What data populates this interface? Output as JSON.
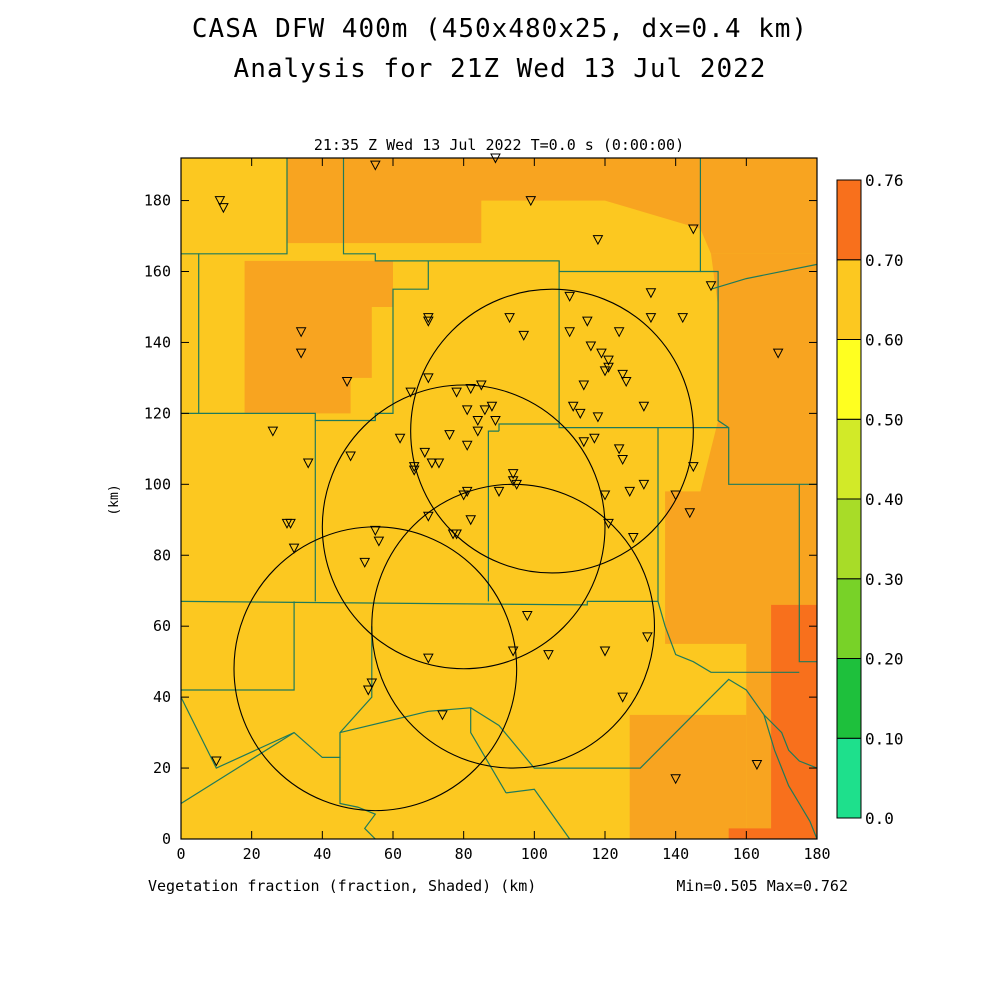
{
  "title": "CASA DFW 400m (450x480x25, dx=0.4 km)",
  "subtitle": "Analysis for 21Z Wed 13 Jul 2022",
  "time_label": "21:35 Z Wed 13 Jul 2022   T=0.0 s (0:00:00)",
  "footer_left": "Vegetation fraction (fraction, Shaded)  (km)",
  "footer_right": "Min=0.505 Max=0.762",
  "colors": {
    "c050_060": "#fcc820",
    "c060_070": "#f8a420",
    "c070_076": "#f8701c",
    "boundary": "#1f7a5a",
    "radar_ring": "#000000"
  },
  "chart_data": {
    "type": "heatmap",
    "xlabel": "",
    "ylabel": "(km)",
    "xlim": [
      0,
      180
    ],
    "ylim": [
      0,
      192
    ],
    "x_ticks": [
      0,
      20,
      40,
      60,
      80,
      100,
      120,
      140,
      160,
      180
    ],
    "y_ticks": [
      0,
      20,
      40,
      60,
      80,
      100,
      120,
      140,
      160,
      180
    ],
    "colorbar": {
      "levels": [
        "0.0",
        "0.10",
        "0.20",
        "0.30",
        "0.40",
        "0.50",
        "0.60",
        "0.70",
        "0.76"
      ],
      "colors": [
        "#1ee08c",
        "#1ec03c",
        "#78d228",
        "#a8dc28",
        "#d2ea28",
        "#ffff20",
        "#fcc820",
        "#f8a420"
      ],
      "top_color": "#f8701c"
    },
    "radar_rings": [
      {
        "center_x": 105,
        "center_y": 115,
        "radius_km": 40
      },
      {
        "center_x": 80,
        "center_y": 88,
        "radius_km": 40
      },
      {
        "center_x": 94,
        "center_y": 60,
        "radius_km": 40
      },
      {
        "center_x": 55,
        "center_y": 48,
        "radius_km": 40
      }
    ],
    "stations": [
      [
        11,
        180
      ],
      [
        12,
        178
      ],
      [
        55,
        190
      ],
      [
        89,
        192
      ],
      [
        99,
        180
      ],
      [
        118,
        169
      ],
      [
        145,
        172
      ],
      [
        150,
        156
      ],
      [
        34,
        143
      ],
      [
        34,
        137
      ],
      [
        70,
        147
      ],
      [
        70,
        146
      ],
      [
        93,
        147
      ],
      [
        97,
        142
      ],
      [
        110,
        143
      ],
      [
        110,
        153
      ],
      [
        115,
        146
      ],
      [
        124,
        143
      ],
      [
        133,
        154
      ],
      [
        133,
        147
      ],
      [
        142,
        147
      ],
      [
        169,
        137
      ],
      [
        47,
        129
      ],
      [
        65,
        126
      ],
      [
        70,
        130
      ],
      [
        78,
        126
      ],
      [
        82,
        127
      ],
      [
        85,
        128
      ],
      [
        81,
        121
      ],
      [
        88,
        122
      ],
      [
        89,
        118
      ],
      [
        84,
        118
      ],
      [
        84,
        115
      ],
      [
        86,
        121
      ],
      [
        114,
        128
      ],
      [
        116,
        139
      ],
      [
        119,
        137
      ],
      [
        121,
        135
      ],
      [
        121,
        133
      ],
      [
        120,
        132
      ],
      [
        125,
        131
      ],
      [
        126,
        129
      ],
      [
        131,
        122
      ],
      [
        111,
        122
      ],
      [
        113,
        120
      ],
      [
        118,
        119
      ],
      [
        26,
        115
      ],
      [
        36,
        106
      ],
      [
        48,
        108
      ],
      [
        62,
        113
      ],
      [
        66,
        105
      ],
      [
        69,
        109
      ],
      [
        71,
        106
      ],
      [
        73,
        106
      ],
      [
        66,
        104
      ],
      [
        76,
        114
      ],
      [
        81,
        111
      ],
      [
        95,
        100
      ],
      [
        94,
        103
      ],
      [
        94,
        101
      ],
      [
        90,
        98
      ],
      [
        81,
        98
      ],
      [
        80,
        97
      ],
      [
        70,
        91
      ],
      [
        77,
        86
      ],
      [
        78,
        86
      ],
      [
        82,
        90
      ],
      [
        31,
        89
      ],
      [
        30,
        89
      ],
      [
        32,
        82
      ],
      [
        55,
        87
      ],
      [
        56,
        84
      ],
      [
        52,
        78
      ],
      [
        114,
        112
      ],
      [
        117,
        113
      ],
      [
        124,
        110
      ],
      [
        125,
        107
      ],
      [
        120,
        97
      ],
      [
        121,
        89
      ],
      [
        127,
        98
      ],
      [
        128,
        85
      ],
      [
        131,
        100
      ],
      [
        140,
        97
      ],
      [
        144,
        92
      ],
      [
        145,
        105
      ],
      [
        98,
        63
      ],
      [
        94,
        53
      ],
      [
        104,
        52
      ],
      [
        120,
        53
      ],
      [
        125,
        40
      ],
      [
        132,
        57
      ],
      [
        70,
        51
      ],
      [
        53,
        42
      ],
      [
        54,
        44
      ],
      [
        74,
        35
      ],
      [
        10,
        22
      ],
      [
        140,
        17
      ],
      [
        163,
        21
      ]
    ],
    "fields": [
      {
        "band": "0.50-0.60",
        "note": "background vegetation fraction"
      },
      {
        "band": "0.60-0.70",
        "note": "orange regions"
      },
      {
        "band": "0.70-0.76",
        "note": "dark orange regions"
      }
    ]
  }
}
